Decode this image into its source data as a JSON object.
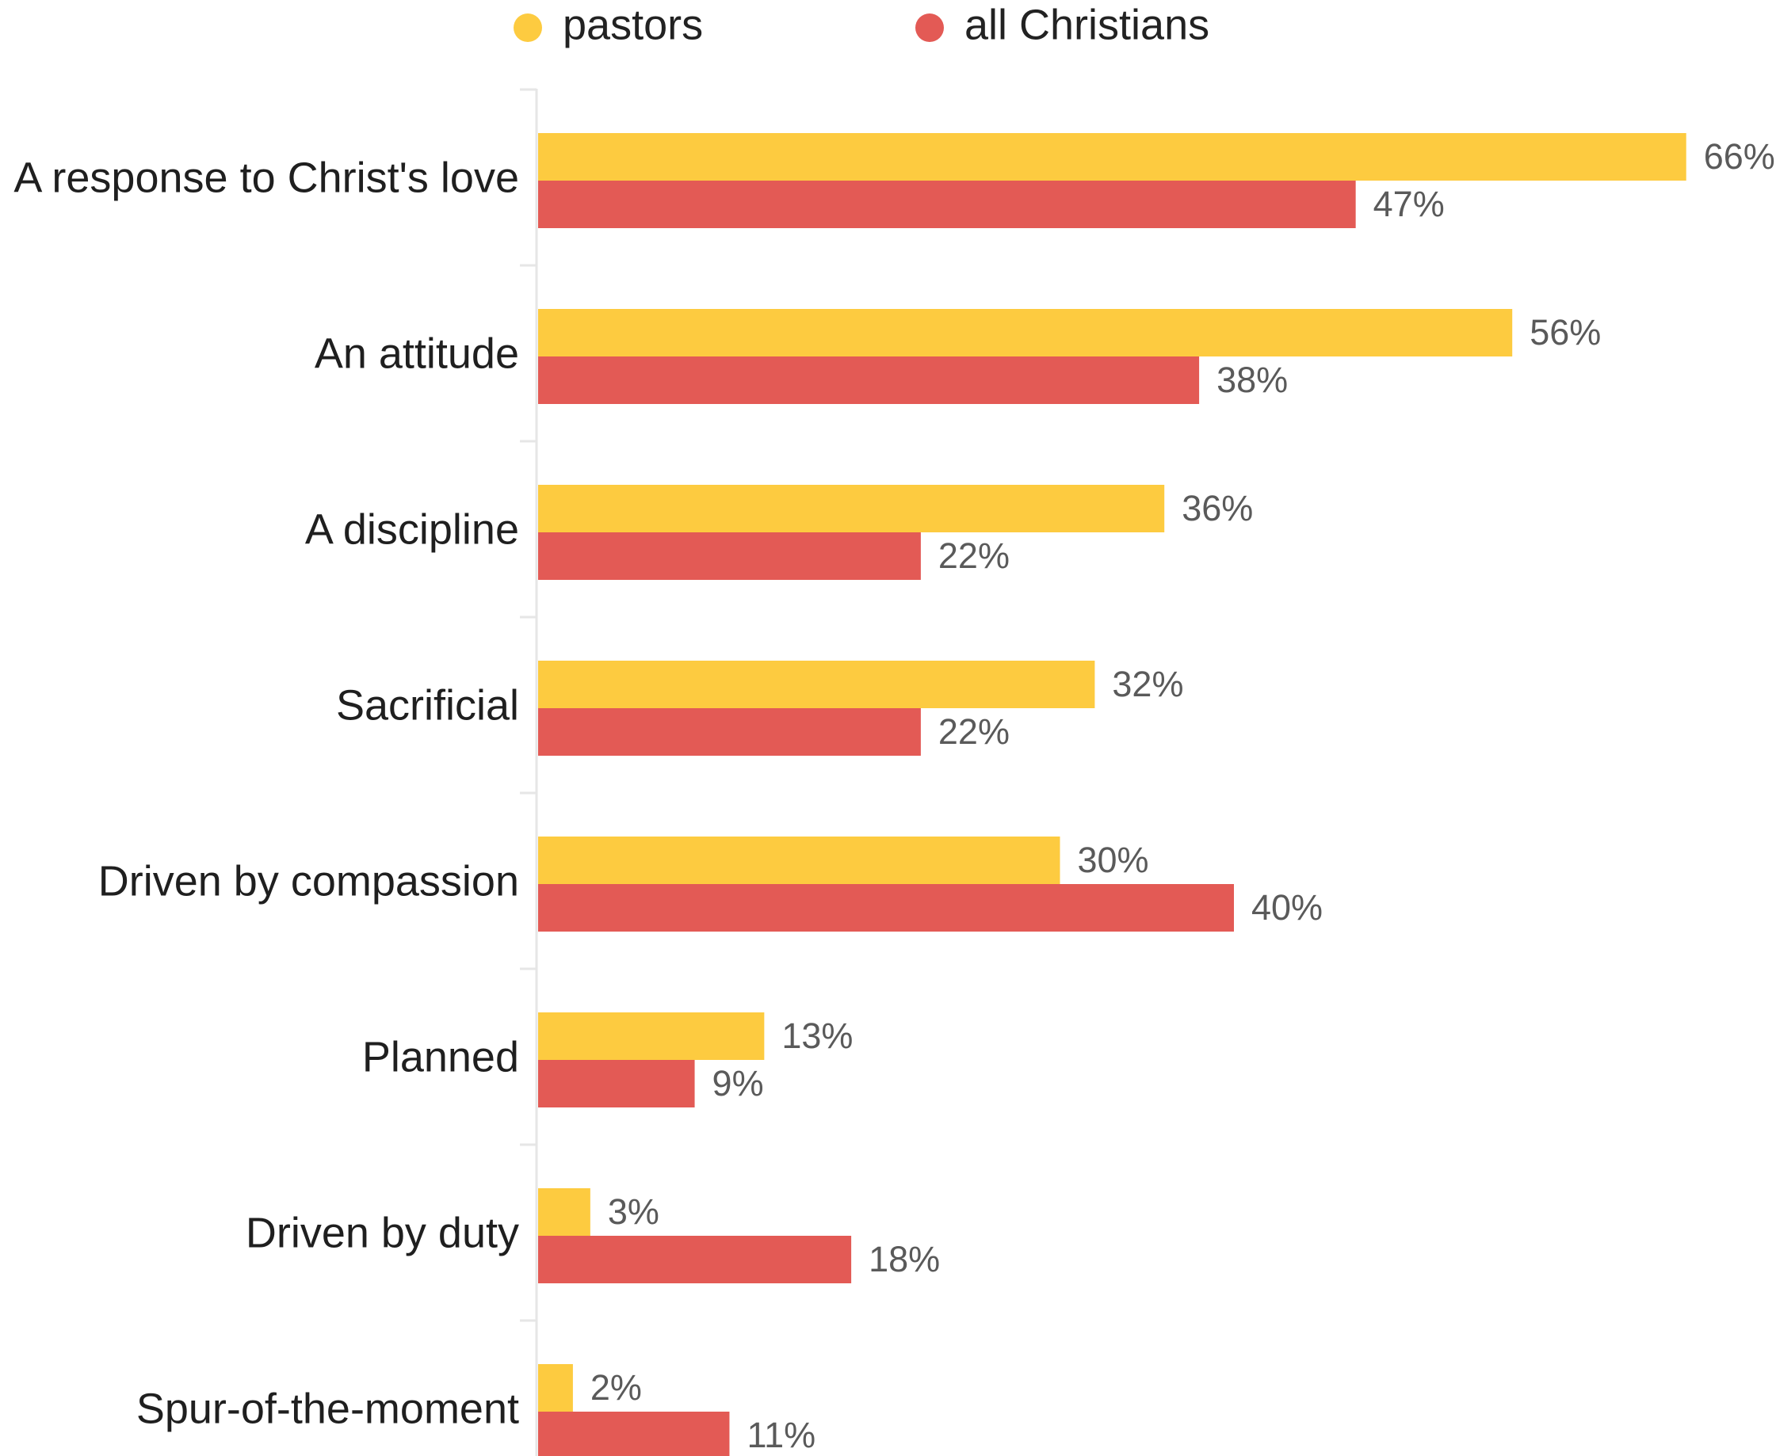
{
  "chart_data": {
    "type": "bar",
    "orientation": "horizontal",
    "categories": [
      "A response to Christ's love",
      "An attitude",
      "A discipline",
      "Sacrificial",
      "Driven by compassion",
      "Planned",
      "Driven by duty",
      "Spur-of-the-moment"
    ],
    "series": [
      {
        "name": "pastors",
        "color": "#FDCB40",
        "values": [
          66,
          56,
          36,
          32,
          30,
          13,
          3,
          2
        ]
      },
      {
        "name": "all Christians",
        "color": "#E35A55",
        "values": [
          47,
          38,
          22,
          22,
          40,
          9,
          18,
          11
        ]
      }
    ],
    "value_labels": {
      "pastors": [
        "66%",
        "56%",
        "36%",
        "32%",
        "30%",
        "13%",
        "3%",
        "2%"
      ],
      "all Christians": [
        "47%",
        "38%",
        "22%",
        "22%",
        "40%",
        "9%",
        "18%",
        "11%"
      ]
    },
    "xlim": [
      0,
      66
    ],
    "legend_position": "top",
    "grid": false,
    "title": "",
    "xlabel": "",
    "ylabel": ""
  }
}
